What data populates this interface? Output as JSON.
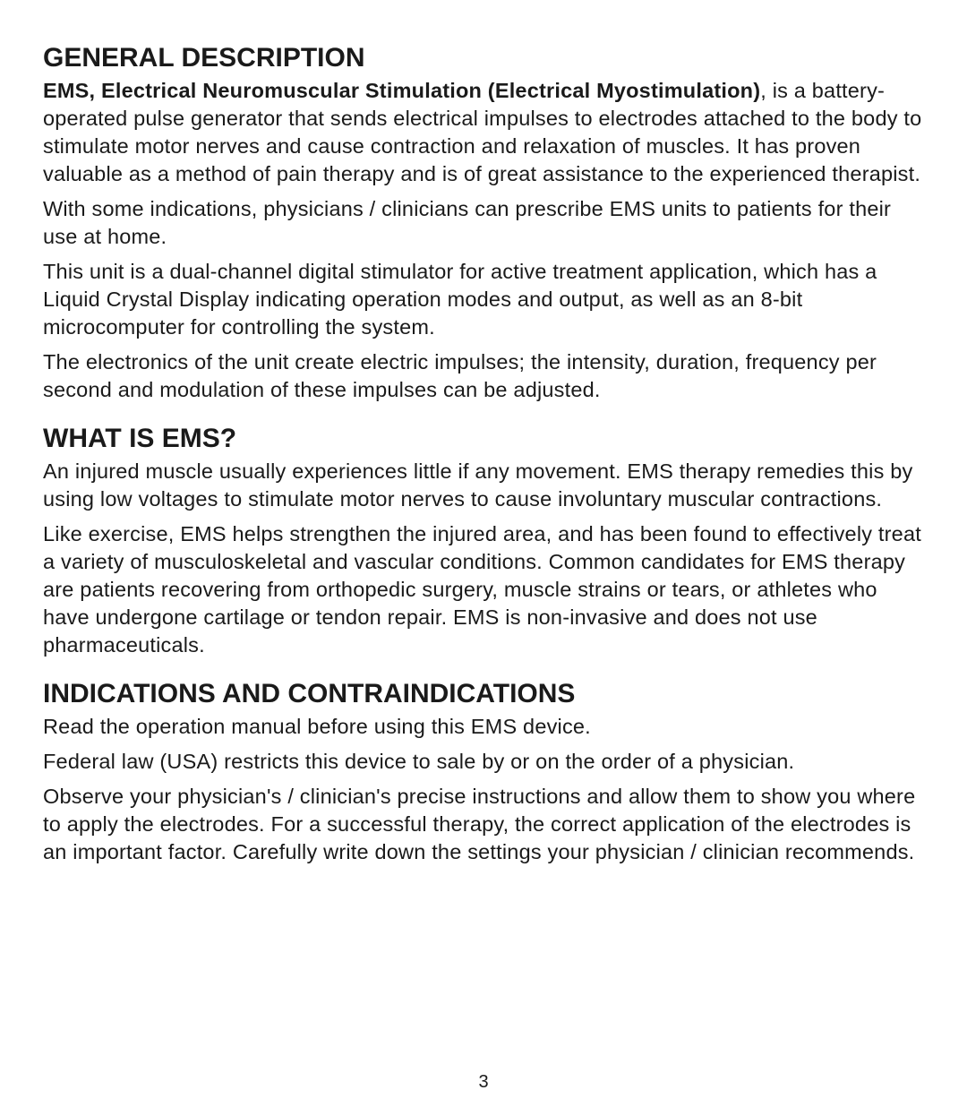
{
  "page": {
    "number": "3",
    "background_color": "#ffffff",
    "text_color": "#1a1a1a"
  },
  "sections": {
    "general_description": {
      "heading": "GENERAL DESCRIPTION",
      "p1_lead_bold": "EMS, Electrical Neuromuscular Stimulation (Electrical Myostimulation)",
      "p1_rest": ", is a battery-operated pulse generator that sends electrical impulses to electrodes attached to the body to stimulate motor nerves and cause contraction and relaxation of muscles. It has proven valuable as a method of pain therapy and is of great assistance to the experienced therapist.",
      "p2": "With some indications, physicians / clinicians can prescribe EMS units to patients for their use at home.",
      "p3": "This unit is a dual-channel digital stimulator for active treatment application, which has a Liquid Crystal Display indicating operation modes and output, as well as an 8-bit microcomputer for controlling the system.",
      "p4": "The electronics of the unit create electric impulses; the intensity, duration, frequency per second and modulation of these impulses can be adjusted."
    },
    "what_is_ems": {
      "heading": "WHAT IS EMS?",
      "p1": "An injured muscle usually experiences little if any movement. EMS therapy remedies this by using low voltages to stimulate motor nerves to cause involuntary muscular contractions.",
      "p2": "Like exercise, EMS helps strengthen the injured area, and has been found to effectively treat a variety of musculoskeletal and vascular conditions. Common candidates for EMS therapy are patients recovering from orthopedic surgery, muscle strains or tears, or athletes who have undergone cartilage or tendon repair. EMS is non-invasive and does not use pharmaceuticals."
    },
    "indications": {
      "heading": "INDICATIONS AND CONTRAINDICATIONS",
      "p1": "Read the operation manual before using this EMS device.",
      "p2": "Federal law (USA) restricts this device to sale by or on the order of a physician.",
      "p3": "Observe your physician's / clinician's precise instructions and allow them to show you where to apply the electrodes. For a successful therapy, the correct application of the electrodes is an important factor. Carefully write down the settings your physician / clinician recommends."
    }
  },
  "typography": {
    "heading_font": "Arial Black / Helvetica Condensed Black",
    "heading_fontsize_pt": 22,
    "heading_weight": 900,
    "body_font": "Helvetica / Arial",
    "body_fontsize_pt": 17,
    "body_line_height": 1.32,
    "bold_weight": 700
  }
}
